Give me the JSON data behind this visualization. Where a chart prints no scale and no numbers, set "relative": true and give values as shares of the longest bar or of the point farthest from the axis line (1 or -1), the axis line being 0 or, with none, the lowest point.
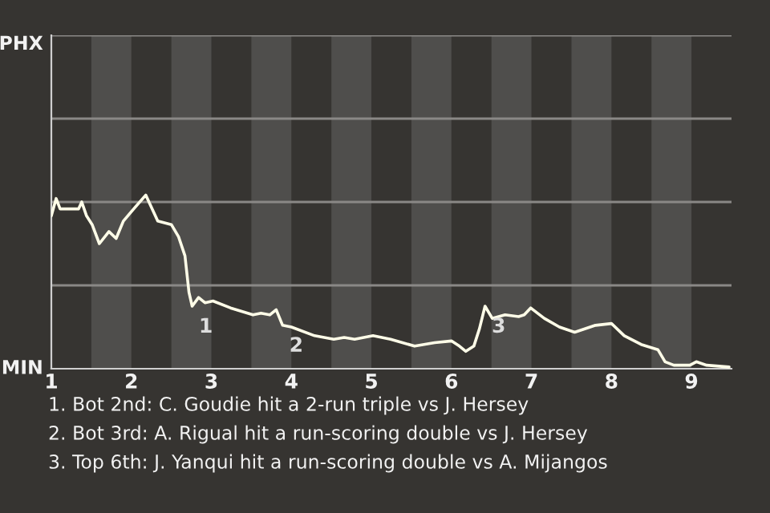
{
  "chart_data": {
    "type": "line",
    "relative": true,
    "x": [
      1.0,
      1.06,
      1.11,
      1.34,
      1.38,
      1.44,
      1.51,
      1.6,
      1.72,
      1.81,
      1.9,
      2.01,
      2.18,
      2.33,
      2.5,
      2.59,
      2.67,
      2.72,
      2.76,
      2.84,
      2.92,
      3.02,
      3.24,
      3.52,
      3.62,
      3.73,
      3.81,
      3.89,
      4.0,
      4.29,
      4.53,
      4.66,
      4.79,
      5.02,
      5.24,
      5.54,
      5.79,
      6.0,
      6.1,
      6.18,
      6.28,
      6.35,
      6.42,
      6.51,
      6.67,
      6.84,
      6.91,
      6.99,
      7.16,
      7.35,
      7.54,
      7.8,
      8.0,
      8.16,
      8.37,
      8.58,
      8.67,
      8.78,
      8.98,
      9.06,
      9.19,
      9.47
    ],
    "series": [
      {
        "color": "#fffde8",
        "values": [
          0.88,
          0.98,
          0.92,
          0.92,
          0.96,
          0.88,
          0.83,
          0.72,
          0.79,
          0.75,
          0.85,
          0.91,
          1.0,
          0.85,
          0.83,
          0.76,
          0.65,
          0.44,
          0.36,
          0.41,
          0.38,
          0.39,
          0.35,
          0.31,
          0.32,
          0.31,
          0.34,
          0.25,
          0.24,
          0.19,
          0.17,
          0.18,
          0.17,
          0.19,
          0.17,
          0.13,
          0.15,
          0.16,
          0.13,
          0.1,
          0.13,
          0.23,
          0.36,
          0.29,
          0.31,
          0.3,
          0.31,
          0.35,
          0.29,
          0.24,
          0.21,
          0.25,
          0.26,
          0.19,
          0.14,
          0.11,
          0.04,
          0.02,
          0.02,
          0.04,
          0.02,
          0.01
        ]
      }
    ],
    "xlim": [
      1,
      9.5
    ],
    "xticks": [
      1,
      2,
      3,
      4,
      5,
      6,
      7,
      8,
      9
    ],
    "ref_lines": [
      {
        "axis": "y",
        "value": 0.48,
        "color": "#8a8886"
      },
      {
        "axis": "y",
        "value": 0.96,
        "color": "#8a8886"
      },
      {
        "axis": "y",
        "value": 1.44,
        "color": "#8a8886"
      },
      {
        "axis": "y",
        "value": 1.92,
        "color": "#8a8886"
      }
    ],
    "bands": [
      {
        "axis": "x",
        "from": 1.5,
        "to": 2,
        "color": "#4f4e4c"
      },
      {
        "axis": "x",
        "from": 2.5,
        "to": 3,
        "color": "#4f4e4c"
      },
      {
        "axis": "x",
        "from": 3.5,
        "to": 4,
        "color": "#4f4e4c"
      },
      {
        "axis": "x",
        "from": 4.5,
        "to": 5,
        "color": "#4f4e4c"
      },
      {
        "axis": "x",
        "from": 5.5,
        "to": 6,
        "color": "#4f4e4c"
      },
      {
        "axis": "x",
        "from": 6.5,
        "to": 7,
        "color": "#4f4e4c"
      },
      {
        "axis": "x",
        "from": 7.5,
        "to": 8,
        "color": "#4f4e4c"
      },
      {
        "axis": "x",
        "from": 8.5,
        "to": 9,
        "color": "#4f4e4c"
      }
    ],
    "annotations": [
      "PHX",
      "MIN",
      {
        "text": "1",
        "x": 2.76,
        "y": 0.36
      },
      {
        "text": "2",
        "x": 3.89,
        "y": 0.25
      },
      {
        "text": "3",
        "x": 6.42,
        "y": 0.36
      },
      "1. Bot 2nd: C. Goudie hit a 2-run triple vs J. Hersey",
      "2. Bot 3rd: A. Rigual hit a run-scoring double vs J. Hersey",
      "3. Top 6th: J. Yanqui hit a run-scoring double vs A. Mijangos"
    ]
  }
}
